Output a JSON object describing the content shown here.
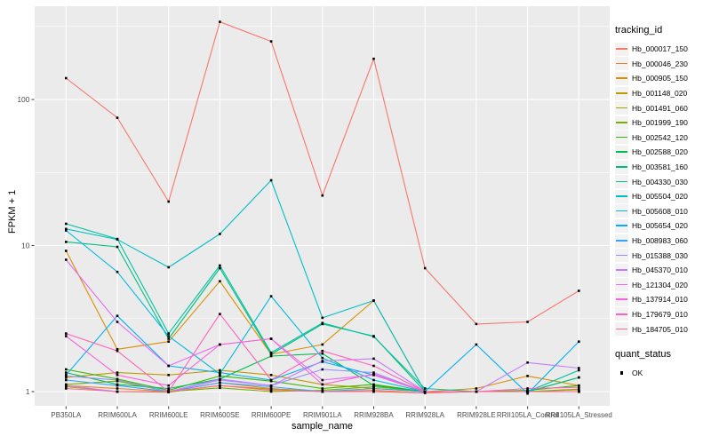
{
  "figure": {
    "background": "#FFFFFF",
    "panel_background": "#EBEBEB",
    "grid_color": "#FFFFFF",
    "axis_text_color": "#4D4D4D",
    "tick_color": "#333333",
    "point_color": "#000000",
    "legend_key_background": "#F2F2F2"
  },
  "chart_data": {
    "type": "line",
    "title": "",
    "xlabel": "sample_name",
    "ylabel": "FPKM + 1",
    "y_scale": "log10",
    "y_ticks": [
      1,
      10,
      100
    ],
    "ylim": [
      0.95,
      400
    ],
    "grid": true,
    "legend_position": "right",
    "legend_title": "tracking_id",
    "legend2_title": "quant_status",
    "legend2_items": [
      "OK"
    ],
    "point_marker": "small-black-square",
    "categories": [
      "PB350LA",
      "RRIM600LA",
      "RRIM600LE",
      "RRIM600SE",
      "RRIM600PE",
      "RRIM901LA",
      "RRIM928BA",
      "RRIM928LA",
      "RRIM928LE",
      "RRII105LA_Control",
      "RRII105LA_Stressed"
    ],
    "series": [
      {
        "name": "Hb_000017_150",
        "color": "#F8766D",
        "values": [
          140,
          75,
          20,
          340,
          250,
          22,
          190,
          7,
          2.9,
          3.0,
          4.9
        ]
      },
      {
        "name": "Hb_000046_230",
        "color": "#EA8331",
        "values": [
          1.1,
          1.05,
          1.0,
          1.15,
          1.05,
          1.0,
          1.02,
          0.98,
          1.0,
          1.0,
          1.03
        ]
      },
      {
        "name": "Hb_000905_150",
        "color": "#D89000",
        "values": [
          9.2,
          1.95,
          2.2,
          5.7,
          1.8,
          2.1,
          4.2,
          1.0,
          1.05,
          1.28,
          1.1
        ]
      },
      {
        "name": "Hb_001148_020",
        "color": "#C09B00",
        "values": [
          1.25,
          1.35,
          1.3,
          1.4,
          1.3,
          1.12,
          1.05,
          1.0,
          1.0,
          1.0,
          1.0
        ]
      },
      {
        "name": "Hb_001491_060",
        "color": "#A3A500",
        "values": [
          1.08,
          1.0,
          0.99,
          1.1,
          1.04,
          1.0,
          1.0,
          0.98,
          1.0,
          1.0,
          1.0
        ]
      },
      {
        "name": "Hb_001999_190",
        "color": "#7CAE00",
        "values": [
          1.12,
          1.18,
          1.0,
          1.06,
          1.0,
          1.02,
          1.08,
          1.0,
          1.0,
          1.0,
          1.04
        ]
      },
      {
        "name": "Hb_002542_120",
        "color": "#39B600",
        "values": [
          1.42,
          1.22,
          1.02,
          1.28,
          1.18,
          1.05,
          1.12,
          1.0,
          1.0,
          1.02,
          1.1
        ]
      },
      {
        "name": "Hb_002588_020",
        "color": "#00BB4E",
        "values": [
          1.35,
          1.12,
          1.05,
          1.22,
          1.75,
          1.82,
          1.1,
          1.0,
          1.0,
          1.0,
          1.25
        ]
      },
      {
        "name": "Hb_003581_160",
        "color": "#00BF7D",
        "values": [
          10.6,
          9.8,
          2.3,
          7.0,
          1.8,
          2.9,
          2.4,
          1.0,
          1.0,
          1.0,
          1.25
        ]
      },
      {
        "name": "Hb_004330_030",
        "color": "#00C1A3",
        "values": [
          14.1,
          11.1,
          2.5,
          7.3,
          1.85,
          2.95,
          2.38,
          1.05,
          1.0,
          1.0,
          1.4
        ]
      },
      {
        "name": "Hb_005504_020",
        "color": "#00BFC4",
        "values": [
          13.0,
          11.0,
          7.1,
          12.0,
          28.0,
          3.2,
          4.2,
          1.0,
          1.0,
          1.0,
          1.0
        ]
      },
      {
        "name": "Hb_005608_010",
        "color": "#00BAE0",
        "values": [
          12.7,
          6.6,
          2.4,
          1.32,
          4.5,
          1.7,
          1.2,
          1.0,
          1.0,
          1.0,
          1.0
        ]
      },
      {
        "name": "Hb_005654_020",
        "color": "#00B0F6",
        "values": [
          1.3,
          3.3,
          1.5,
          1.35,
          1.2,
          1.6,
          1.3,
          1.0,
          2.1,
          0.97,
          2.2
        ]
      },
      {
        "name": "Hb_008983_060",
        "color": "#35A2FF",
        "values": [
          1.2,
          1.1,
          1.0,
          1.15,
          1.08,
          1.0,
          1.05,
          1.0,
          1.0,
          1.0,
          1.0
        ]
      },
      {
        "name": "Hb_015388_030",
        "color": "#9590FF",
        "values": [
          1.28,
          1.2,
          1.0,
          1.22,
          1.1,
          1.42,
          1.35,
          1.0,
          1.0,
          1.0,
          1.0
        ]
      },
      {
        "name": "Hb_045370_010",
        "color": "#C77CFF",
        "values": [
          1.1,
          1.0,
          1.0,
          1.2,
          1.1,
          1.62,
          1.68,
          1.0,
          1.0,
          1.58,
          1.45
        ]
      },
      {
        "name": "Hb_121304_020",
        "color": "#E76BF3",
        "values": [
          8.0,
          3.0,
          1.5,
          2.1,
          2.3,
          1.2,
          1.3,
          1.0,
          1.0,
          1.0,
          1.0
        ]
      },
      {
        "name": "Hb_137914_010",
        "color": "#FA62DB",
        "values": [
          2.4,
          1.3,
          1.1,
          2.1,
          2.3,
          1.12,
          1.32,
          1.0,
          1.0,
          1.0,
          1.0
        ]
      },
      {
        "name": "Hb_179679_010",
        "color": "#FF62BC",
        "values": [
          2.5,
          1.9,
          1.0,
          3.4,
          1.2,
          1.9,
          1.5,
          1.0,
          1.0,
          1.05,
          1.07
        ]
      },
      {
        "name": "Hb_184705_010",
        "color": "#FF6A98",
        "values": [
          1.05,
          1.0,
          1.0,
          1.1,
          1.02,
          1.0,
          1.0,
          0.98,
          1.0,
          1.0,
          1.0
        ]
      }
    ]
  }
}
